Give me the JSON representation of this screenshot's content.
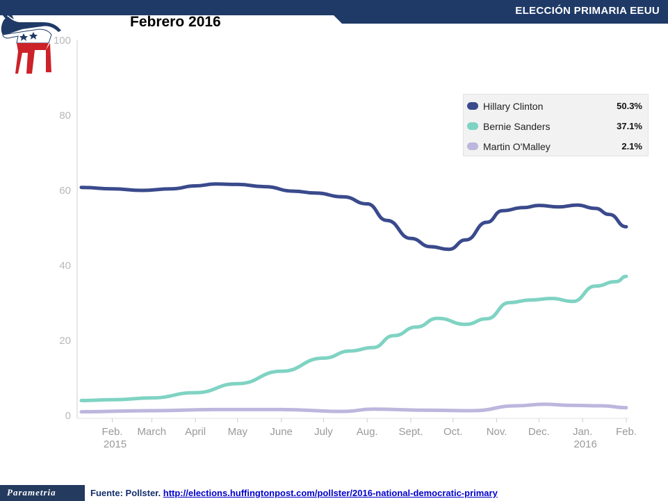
{
  "header": {
    "banner_title": "ELECCIÓN PRIMARIA EEUU",
    "chart_title": "Febrero 2016",
    "logo_icon": "democratic-donkey-icon",
    "banner_color": "#1f3a66"
  },
  "footer": {
    "brand": "Parametria",
    "source_label": "Fuente: Pollster.",
    "source_link": "http://elections.huffingtonpost.com/pollster/2016-national-democratic-primary"
  },
  "legend": [
    {
      "name": "Hillary Clinton",
      "value": "50.3%",
      "color": "#3a4a8c"
    },
    {
      "name": "Bernie Sanders",
      "value": "37.1%",
      "color": "#7fd3c3"
    },
    {
      "name": "Martin O'Malley",
      "value": "2.1%",
      "color": "#bdb6dd"
    }
  ],
  "chart_data": {
    "type": "line",
    "title": "Febrero 2016",
    "ylim": [
      0,
      100
    ],
    "yticks": [
      0,
      20,
      40,
      60,
      80,
      100
    ],
    "xlim": [
      "2015-01-10",
      "2016-02-03"
    ],
    "xticks": [
      {
        "date": "2015-02-01",
        "label": "Feb.",
        "sub": "2015"
      },
      {
        "date": "2015-03-01",
        "label": "March",
        "sub": ""
      },
      {
        "date": "2015-04-01",
        "label": "April",
        "sub": ""
      },
      {
        "date": "2015-05-01",
        "label": "May",
        "sub": ""
      },
      {
        "date": "2015-06-01",
        "label": "June",
        "sub": ""
      },
      {
        "date": "2015-07-01",
        "label": "July",
        "sub": ""
      },
      {
        "date": "2015-08-01",
        "label": "Aug.",
        "sub": ""
      },
      {
        "date": "2015-09-01",
        "label": "Sept.",
        "sub": ""
      },
      {
        "date": "2015-10-01",
        "label": "Oct.",
        "sub": ""
      },
      {
        "date": "2015-11-01",
        "label": "Nov.",
        "sub": ""
      },
      {
        "date": "2015-12-01",
        "label": "Dec.",
        "sub": ""
      },
      {
        "date": "2016-01-01",
        "label": "Jan.",
        "sub": "2016"
      },
      {
        "date": "2016-02-01",
        "label": "Feb.",
        "sub": ""
      }
    ],
    "grid": false,
    "legend_position": "top-right",
    "series": [
      {
        "name": "Hillary Clinton",
        "color": "#3a4a8c",
        "points": [
          [
            "2015-01-10",
            60.8
          ],
          [
            "2015-02-01",
            60.4
          ],
          [
            "2015-02-22",
            60.0
          ],
          [
            "2015-03-15",
            60.4
          ],
          [
            "2015-04-01",
            61.2
          ],
          [
            "2015-04-15",
            61.7
          ],
          [
            "2015-05-01",
            61.6
          ],
          [
            "2015-05-20",
            61.0
          ],
          [
            "2015-06-10",
            59.8
          ],
          [
            "2015-06-25",
            59.3
          ],
          [
            "2015-07-15",
            58.3
          ],
          [
            "2015-08-01",
            56.4
          ],
          [
            "2015-08-15",
            52.0
          ],
          [
            "2015-09-01",
            47.2
          ],
          [
            "2015-09-15",
            45.0
          ],
          [
            "2015-09-28",
            44.3
          ],
          [
            "2015-10-10",
            46.8
          ],
          [
            "2015-10-25",
            51.5
          ],
          [
            "2015-11-05",
            54.6
          ],
          [
            "2015-11-20",
            55.4
          ],
          [
            "2015-12-01",
            56.0
          ],
          [
            "2015-12-15",
            55.6
          ],
          [
            "2015-12-28",
            56.1
          ],
          [
            "2016-01-10",
            55.2
          ],
          [
            "2016-01-20",
            53.6
          ],
          [
            "2016-02-01",
            50.3
          ]
        ]
      },
      {
        "name": "Bernie Sanders",
        "color": "#7fd3c3",
        "points": [
          [
            "2015-01-10",
            4.0
          ],
          [
            "2015-02-01",
            4.2
          ],
          [
            "2015-03-01",
            4.7
          ],
          [
            "2015-04-01",
            6.1
          ],
          [
            "2015-05-01",
            8.5
          ],
          [
            "2015-06-01",
            11.8
          ],
          [
            "2015-07-01",
            15.3
          ],
          [
            "2015-07-20",
            17.2
          ],
          [
            "2015-08-05",
            18.1
          ],
          [
            "2015-08-20",
            21.3
          ],
          [
            "2015-09-05",
            23.6
          ],
          [
            "2015-09-20",
            25.9
          ],
          [
            "2015-10-10",
            24.3
          ],
          [
            "2015-10-25",
            25.8
          ],
          [
            "2015-11-10",
            30.1
          ],
          [
            "2015-11-25",
            30.8
          ],
          [
            "2015-12-10",
            31.2
          ],
          [
            "2015-12-25",
            30.4
          ],
          [
            "2016-01-10",
            34.5
          ],
          [
            "2016-01-25",
            35.7
          ],
          [
            "2016-02-01",
            37.1
          ]
        ]
      },
      {
        "name": "Martin O'Malley",
        "color": "#bdb6dd",
        "points": [
          [
            "2015-01-10",
            1.0
          ],
          [
            "2015-03-01",
            1.3
          ],
          [
            "2015-04-15",
            1.6
          ],
          [
            "2015-06-01",
            1.6
          ],
          [
            "2015-07-15",
            1.1
          ],
          [
            "2015-08-05",
            1.7
          ],
          [
            "2015-09-15",
            1.4
          ],
          [
            "2015-10-15",
            1.3
          ],
          [
            "2015-11-15",
            2.6
          ],
          [
            "2015-12-05",
            3.0
          ],
          [
            "2015-12-25",
            2.7
          ],
          [
            "2016-01-15",
            2.6
          ],
          [
            "2016-02-01",
            2.1
          ]
        ]
      }
    ]
  }
}
